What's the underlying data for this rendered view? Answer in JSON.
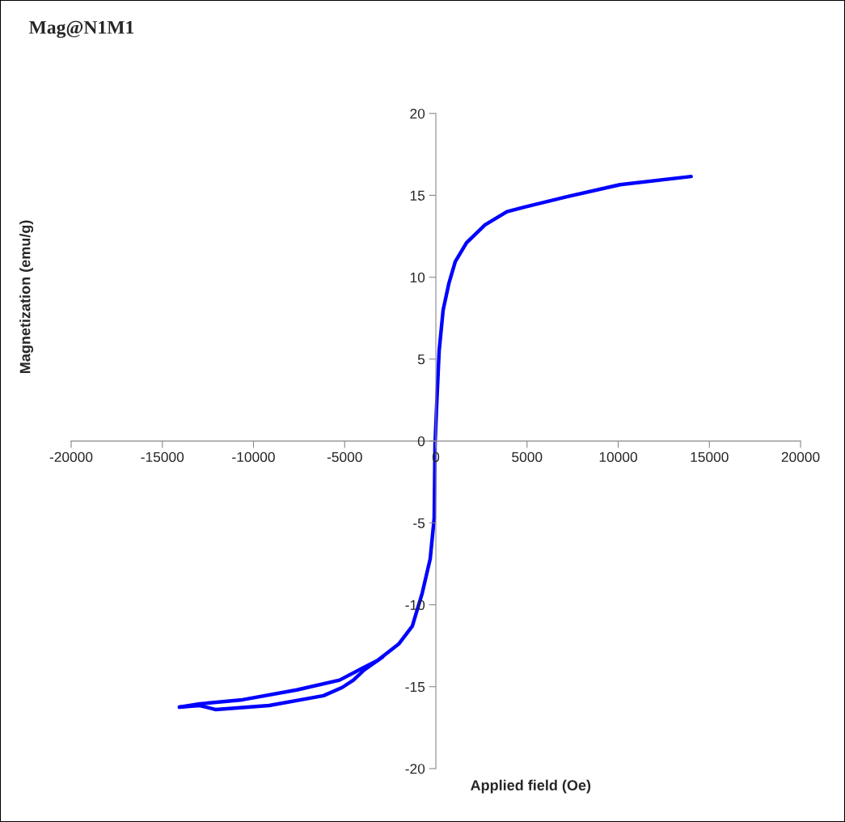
{
  "chart_data": {
    "type": "line",
    "title": "Mag@N1M1",
    "xlabel": "Applied field (Oe)",
    "ylabel": "Magnetization (emu/g)",
    "xlim": [
      -20000,
      20000
    ],
    "ylim": [
      -20,
      20
    ],
    "xticks": [
      -20000,
      -15000,
      -10000,
      -5000,
      0,
      5000,
      10000,
      15000,
      20000
    ],
    "yticks": [
      -20,
      -15,
      -10,
      -5,
      0,
      5,
      10,
      15,
      20
    ],
    "grid": false,
    "legend": false,
    "marker": "none",
    "line_style": "solid",
    "series": [
      {
        "color": "#0000ff",
        "x": [
          14000,
          10100,
          7140,
          4920,
          3900,
          2700,
          1680,
          1065,
          710,
          400,
          180,
          45,
          -45,
          -90,
          -310,
          -750,
          -1290,
          -2040,
          -3190,
          -4080,
          -5280,
          -7630,
          -10600,
          -12950,
          -14060
        ],
        "values": [
          16.15,
          15.65,
          14.9,
          14.3,
          14.0,
          13.2,
          12.1,
          10.95,
          9.6,
          8.0,
          5.5,
          2.2,
          -0.25,
          -4.7,
          -7.2,
          -9.3,
          -11.3,
          -12.4,
          -13.4,
          -13.9,
          -14.6,
          -15.2,
          -15.8,
          -16.05,
          -16.25
        ]
      },
      {
        "color": "#0000ff",
        "x": [
          -14060,
          -12950,
          -12060,
          -9140,
          -6160,
          -5140,
          -4520,
          -3950,
          -2930
        ],
        "values": [
          -16.25,
          -16.15,
          -16.4,
          -16.15,
          -15.55,
          -15.05,
          -14.6,
          -14.0,
          -13.2
        ]
      }
    ]
  }
}
